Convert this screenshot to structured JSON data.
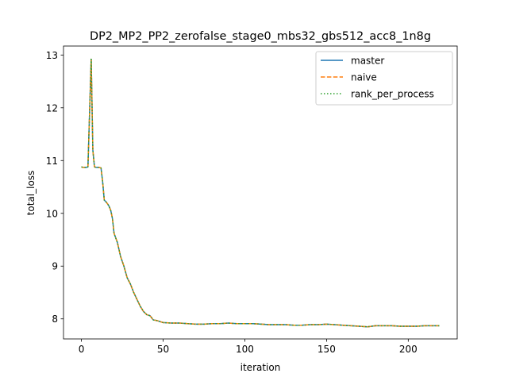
{
  "chart_data": {
    "type": "line",
    "title": "DP2_MP2_PP2_zerofalse_stage0_mbs32_gbs512_acc8_1n8g",
    "xlabel": "iteration",
    "ylabel": "total_loss",
    "xlim": [
      -10.95,
      229.95
    ],
    "ylim": [
      7.62,
      13.17
    ],
    "xticks": [
      0,
      50,
      100,
      150,
      200
    ],
    "yticks": [
      8,
      9,
      10,
      11,
      12,
      13
    ],
    "grid": false,
    "legend_position": "top-right",
    "x": [
      0,
      1,
      2,
      3,
      4,
      5,
      6,
      7,
      8,
      9,
      10,
      11,
      12,
      13,
      14,
      15,
      16,
      17,
      18,
      19,
      20,
      22,
      24,
      26,
      28,
      30,
      32,
      34,
      36,
      38,
      40,
      42,
      44,
      46,
      48,
      50,
      55,
      60,
      65,
      70,
      75,
      80,
      85,
      90,
      95,
      100,
      105,
      110,
      115,
      120,
      125,
      130,
      135,
      140,
      145,
      150,
      155,
      160,
      165,
      170,
      175,
      180,
      185,
      190,
      195,
      200,
      205,
      210,
      215,
      219
    ],
    "values": [
      10.88,
      10.87,
      10.87,
      10.87,
      10.88,
      11.9,
      12.92,
      11.2,
      10.88,
      10.87,
      10.87,
      10.87,
      10.86,
      10.6,
      10.25,
      10.22,
      10.18,
      10.13,
      10.05,
      9.9,
      9.62,
      9.45,
      9.18,
      9.0,
      8.78,
      8.66,
      8.5,
      8.37,
      8.24,
      8.14,
      8.08,
      8.06,
      7.98,
      7.97,
      7.95,
      7.93,
      7.92,
      7.92,
      7.91,
      7.9,
      7.9,
      7.91,
      7.91,
      7.92,
      7.91,
      7.91,
      7.91,
      7.9,
      7.89,
      7.89,
      7.89,
      7.88,
      7.88,
      7.89,
      7.89,
      7.9,
      7.89,
      7.88,
      7.87,
      7.86,
      7.85,
      7.87,
      7.87,
      7.87,
      7.86,
      7.86,
      7.86,
      7.87,
      7.87,
      7.87
    ],
    "series": [
      {
        "name": "master",
        "color": "#1f77b4",
        "style": "solid"
      },
      {
        "name": "naive",
        "color": "#ff7f0e",
        "style": "dashed"
      },
      {
        "name": "rank_per_process",
        "color": "#2ca02c",
        "style": "dotted"
      }
    ]
  }
}
